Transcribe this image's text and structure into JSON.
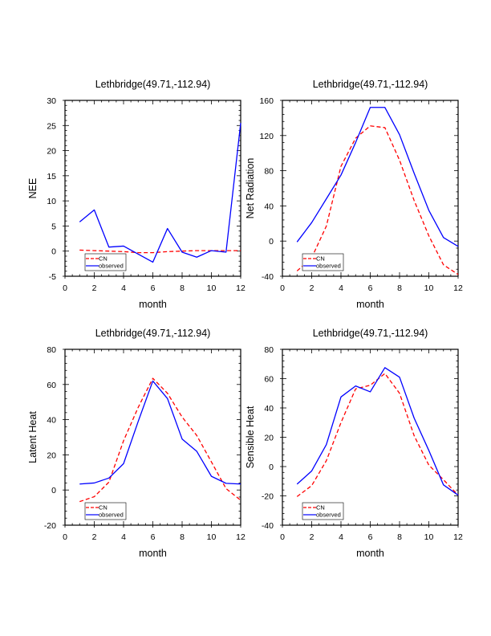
{
  "chart_data": [
    {
      "type": "line",
      "title": "Lethbridge(49.71,-112.94)",
      "xlabel": "month",
      "ylabel": "NEE",
      "xlim": [
        0,
        12
      ],
      "ylim": [
        -5,
        30
      ],
      "xticks": [
        0,
        2,
        4,
        6,
        8,
        10,
        12
      ],
      "yticks": [
        -5,
        0,
        5,
        10,
        15,
        20,
        25,
        30
      ],
      "x": [
        1,
        2,
        3,
        4,
        5,
        6,
        7,
        8,
        9,
        10,
        11,
        12
      ],
      "legend_position": "bottom-left",
      "series": [
        {
          "name": "CN",
          "color": "#ff0000",
          "style": "dashed",
          "values": [
            0.2,
            0.1,
            0.0,
            -0.1,
            -0.3,
            -0.3,
            -0.1,
            0.0,
            0.1,
            0.1,
            0.1,
            0.1
          ]
        },
        {
          "name": "observed",
          "color": "#0000ff",
          "style": "solid",
          "values": [
            5.8,
            8.2,
            0.8,
            1.0,
            -0.6,
            -2.2,
            4.5,
            -0.2,
            -1.2,
            0.1,
            -0.2,
            25.5
          ]
        }
      ]
    },
    {
      "type": "line",
      "title": "Lethbridge(49.71,-112.94)",
      "xlabel": "month",
      "ylabel": "Net Radiation",
      "xlim": [
        0,
        12
      ],
      "ylim": [
        -40,
        160
      ],
      "xticks": [
        0,
        2,
        4,
        6,
        8,
        10,
        12
      ],
      "yticks": [
        -40,
        0,
        40,
        80,
        120,
        160
      ],
      "x": [
        1,
        2,
        3,
        4,
        5,
        6,
        7,
        8,
        9,
        10,
        11,
        12
      ],
      "legend_position": "bottom-left",
      "series": [
        {
          "name": "CN",
          "color": "#ff0000",
          "style": "dashed",
          "values": [
            -34,
            -19,
            17,
            85,
            117,
            131,
            129,
            92,
            46,
            6,
            -27,
            -38
          ]
        },
        {
          "name": "observed",
          "color": "#0000ff",
          "style": "solid",
          "values": [
            -1,
            21,
            48,
            75,
            112,
            152,
            152,
            121,
            77,
            35,
            4,
            -6
          ]
        }
      ]
    },
    {
      "type": "line",
      "title": "Lethbridge(49.71,-112.94)",
      "xlabel": "month",
      "ylabel": "Latent Heat",
      "xlim": [
        0,
        12
      ],
      "ylim": [
        -20,
        80
      ],
      "xticks": [
        0,
        2,
        4,
        6,
        8,
        10,
        12
      ],
      "yticks": [
        -20,
        0,
        20,
        40,
        60,
        80
      ],
      "x": [
        1,
        2,
        3,
        4,
        5,
        6,
        7,
        8,
        9,
        10,
        11,
        12
      ],
      "legend_position": "bottom-left",
      "series": [
        {
          "name": "CN",
          "color": "#ff0000",
          "style": "dashed",
          "values": [
            -6.6,
            -3.8,
            4.5,
            28,
            47,
            63.5,
            55,
            41.5,
            31,
            16,
            0.8,
            -5.8
          ]
        },
        {
          "name": "observed",
          "color": "#0000ff",
          "style": "solid",
          "values": [
            3.4,
            4,
            6.8,
            15,
            39,
            62,
            52,
            29,
            22,
            7.8,
            3.8,
            3.4
          ]
        }
      ]
    },
    {
      "type": "line",
      "title": "Lethbridge(49.71,-112.94)",
      "xlabel": "month",
      "ylabel": "Sensible Heat",
      "xlim": [
        0,
        12
      ],
      "ylim": [
        -40,
        80
      ],
      "xticks": [
        0,
        2,
        4,
        6,
        8,
        10,
        12
      ],
      "yticks": [
        -40,
        -20,
        0,
        20,
        40,
        60,
        80
      ],
      "x": [
        1,
        2,
        3,
        4,
        5,
        6,
        7,
        8,
        9,
        10,
        11,
        12
      ],
      "legend_position": "bottom-left",
      "series": [
        {
          "name": "CN",
          "color": "#ff0000",
          "style": "dashed",
          "values": [
            -20.5,
            -13,
            4,
            30,
            53,
            55.5,
            63.5,
            50,
            21,
            1,
            -9,
            -19.5
          ]
        },
        {
          "name": "observed",
          "color": "#0000ff",
          "style": "solid",
          "values": [
            -12,
            -3,
            15,
            47.5,
            55,
            51,
            67.5,
            61,
            33,
            11,
            -12.5,
            -19.5
          ]
        }
      ]
    }
  ]
}
